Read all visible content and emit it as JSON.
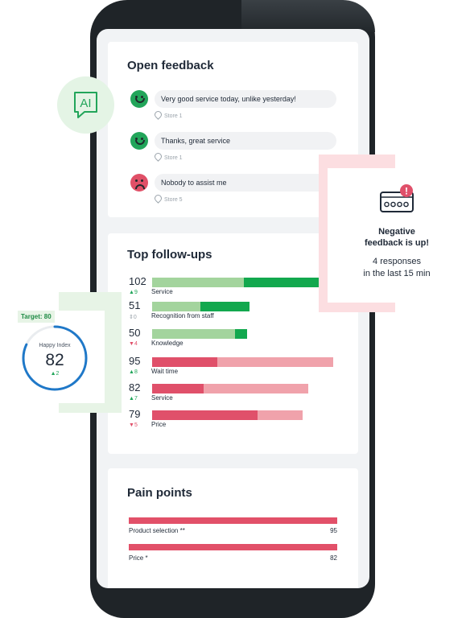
{
  "open_feedback": {
    "title": "Open feedback",
    "items": [
      {
        "sentiment": "positive",
        "text": "Very good service today, unlike yesterday!",
        "store": "Store 1"
      },
      {
        "sentiment": "positive",
        "text": "Thanks, great service",
        "store": "Store 1"
      },
      {
        "sentiment": "negative",
        "text": "Nobody to assist me",
        "store": "Store 5"
      }
    ]
  },
  "top_followups": {
    "title": "Top follow-ups",
    "items": [
      {
        "count": "102",
        "delta": "9",
        "delta_dir": "up",
        "label": "Service",
        "kind": "positive",
        "light": 102,
        "dark": 98
      },
      {
        "count": "51",
        "delta": "0",
        "delta_dir": "flat",
        "label": "Recognition from staff",
        "kind": "positive",
        "light": 51,
        "dark": 47
      },
      {
        "count": "50",
        "delta": "4",
        "delta_dir": "down",
        "label": "Knowledge",
        "kind": "positive",
        "light": 50,
        "dark": 12
      },
      {
        "count": "95",
        "delta": "8",
        "delta_dir": "up",
        "label": "Wait time",
        "kind": "negative",
        "dark": 40,
        "light": 95
      },
      {
        "count": "82",
        "delta": "7",
        "delta_dir": "up",
        "label": "Service",
        "kind": "negative",
        "dark": 32,
        "light": 82
      },
      {
        "count": "79",
        "delta": "5",
        "delta_dir": "down",
        "label": "Price",
        "kind": "negative",
        "dark": 65,
        "light": 79
      }
    ]
  },
  "pain_points": {
    "title": "Pain points",
    "items": [
      {
        "label": "Product selection **",
        "value": "95"
      },
      {
        "label": "Price *",
        "value": "82"
      }
    ]
  },
  "happy_index": {
    "target": "Target: 80",
    "label": "Happy Index",
    "value": "82",
    "delta": "2",
    "progress": 0.82
  },
  "alert": {
    "title": "Negative feedback is up!",
    "title_line1": "Negative",
    "title_line2": "feedback is up!",
    "subtitle_line1": "4 responses",
    "subtitle_line2": "in the last 15 min"
  },
  "ai_badge": {
    "text": "AI"
  },
  "colors": {
    "green_dark": "#12a84e",
    "green_light": "#a3d49d",
    "red_dark": "#e0506a",
    "red_light": "#f0a2ab",
    "accent_blue": "#1f78c8"
  },
  "icons": [
    "ai-chat-icon",
    "smile-icon",
    "frown-icon",
    "location-pin-icon",
    "alert-icon",
    "meter-icon",
    "triangle-up-icon",
    "triangle-down-icon"
  ]
}
